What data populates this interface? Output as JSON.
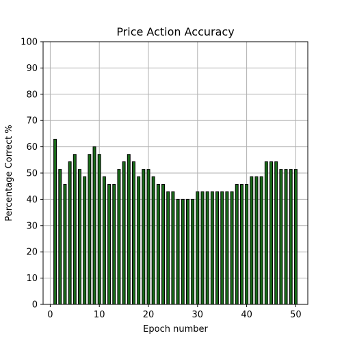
{
  "chart_data": {
    "type": "bar",
    "title": "Price Action Accuracy",
    "xlabel": "Epoch number",
    "ylabel": "Percentage Correct %",
    "x": [
      1,
      2,
      3,
      4,
      5,
      6,
      7,
      8,
      9,
      10,
      11,
      12,
      13,
      14,
      15,
      16,
      17,
      18,
      19,
      20,
      21,
      22,
      23,
      24,
      25,
      26,
      27,
      28,
      29,
      30,
      31,
      32,
      33,
      34,
      35,
      36,
      37,
      38,
      39,
      40,
      41,
      42,
      43,
      44,
      45,
      46,
      47,
      48,
      49,
      50
    ],
    "values": [
      62.9,
      51.4,
      45.7,
      54.3,
      57.1,
      51.4,
      48.6,
      57.1,
      60.0,
      57.1,
      48.6,
      45.7,
      45.7,
      51.4,
      54.3,
      57.1,
      54.3,
      48.6,
      51.4,
      51.4,
      48.6,
      45.7,
      45.7,
      42.9,
      42.9,
      40.0,
      40.0,
      40.0,
      40.0,
      42.9,
      42.9,
      42.9,
      42.9,
      42.9,
      42.9,
      42.9,
      42.9,
      45.7,
      45.7,
      45.7,
      48.6,
      48.6,
      48.6,
      54.3,
      54.3,
      54.3,
      51.4,
      51.4,
      51.4,
      51.4
    ],
    "xlim": [
      -1.45,
      52.45
    ],
    "ylim": [
      0,
      100
    ],
    "xticks": [
      0,
      10,
      20,
      30,
      40,
      50
    ],
    "yticks": [
      0,
      10,
      20,
      30,
      40,
      50,
      60,
      70,
      80,
      90,
      100
    ],
    "bar_color": "#1a6b1a",
    "edge_color": "#000000",
    "grid": true
  }
}
